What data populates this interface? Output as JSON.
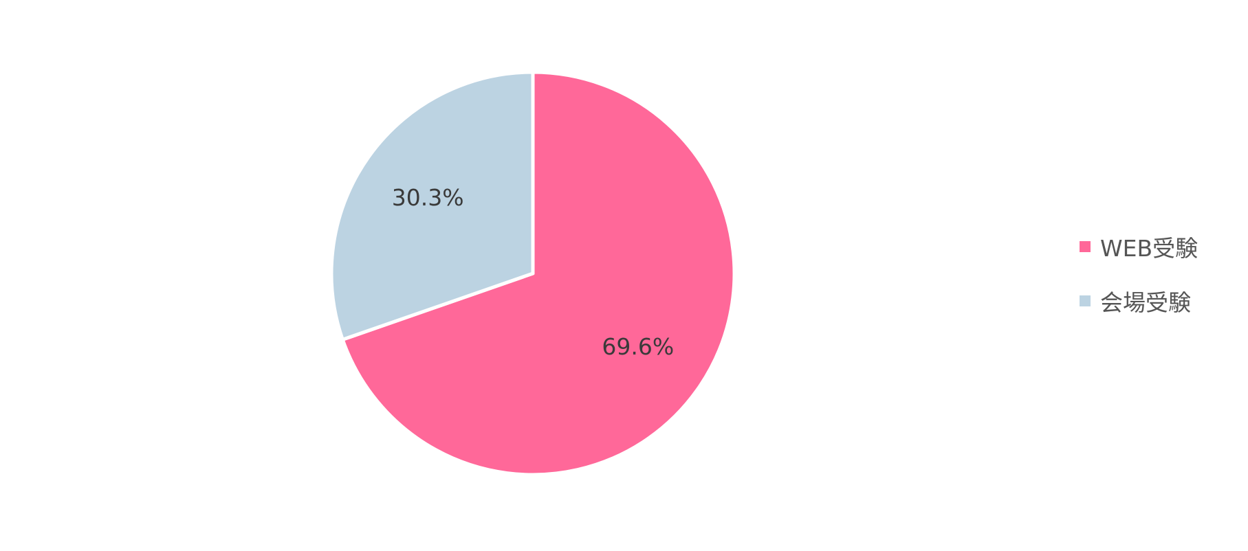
{
  "chart_data": {
    "type": "pie",
    "title": "",
    "slices": [
      {
        "name": "WEB受験",
        "value": 69.6,
        "label": "69.6%",
        "color": "#ff6899"
      },
      {
        "name": "会場受験",
        "value": 30.3,
        "label": "30.3%",
        "color": "#bcd3e2"
      }
    ],
    "start_angle": "12 o'clock",
    "direction": "clockwise",
    "legend_position": "right"
  }
}
